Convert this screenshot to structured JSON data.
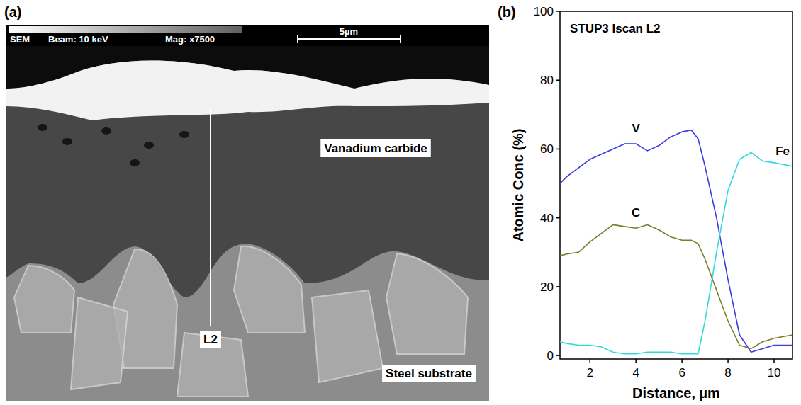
{
  "micrograph": {
    "panel_label": "(a)",
    "info_bar": {
      "detector": "SEM",
      "beam": "Beam: 10 keV",
      "magnification": "Mag:  x7500",
      "scale_bar": "5µm"
    },
    "labels": {
      "layer": "Vanadium carbide",
      "substrate": "Steel substrate",
      "line": "L2"
    }
  },
  "chart_data": {
    "type": "line",
    "panel_label": "(b)",
    "title": "STUP3 Iscan L2",
    "x_label": "Distance, µm",
    "y_label": "Atomic Conc (%)",
    "x": [
      0.7,
      1,
      1.5,
      2,
      2.5,
      3,
      3.5,
      4,
      4.5,
      5,
      5.5,
      6,
      6.4,
      6.7,
      7,
      7.5,
      8,
      8.5,
      9,
      9.5,
      10,
      10.8
    ],
    "series": [
      {
        "name": "V",
        "color": "#3a3ae0",
        "values": [
          50,
          52,
          54.5,
          57,
          58.5,
          60,
          61.5,
          61.5,
          59.5,
          61,
          63.5,
          65,
          65.5,
          63,
          55,
          40,
          22,
          6,
          1,
          2,
          3,
          3
        ]
      },
      {
        "name": "C",
        "color": "#7c7c2c",
        "values": [
          29,
          29.5,
          30,
          33,
          35.5,
          38,
          37.5,
          37,
          38,
          36.5,
          34.5,
          33.5,
          33.5,
          32.5,
          28,
          19,
          10,
          3,
          2,
          4,
          5,
          6
        ]
      },
      {
        "name": "Fe",
        "color": "#33d8dd",
        "values": [
          4,
          3.5,
          3,
          3,
          2.5,
          1,
          0.5,
          0.5,
          1,
          1,
          1,
          0.5,
          0.5,
          0.5,
          10,
          30,
          48,
          57,
          59,
          56.5,
          56,
          55
        ]
      }
    ],
    "xlim": [
      0.7,
      10.8
    ],
    "xticks": [
      2,
      4,
      6,
      8,
      10
    ],
    "ylim": [
      -1,
      100
    ],
    "yticks": [
      0,
      20,
      40,
      60,
      80,
      100
    ],
    "grid": false
  }
}
